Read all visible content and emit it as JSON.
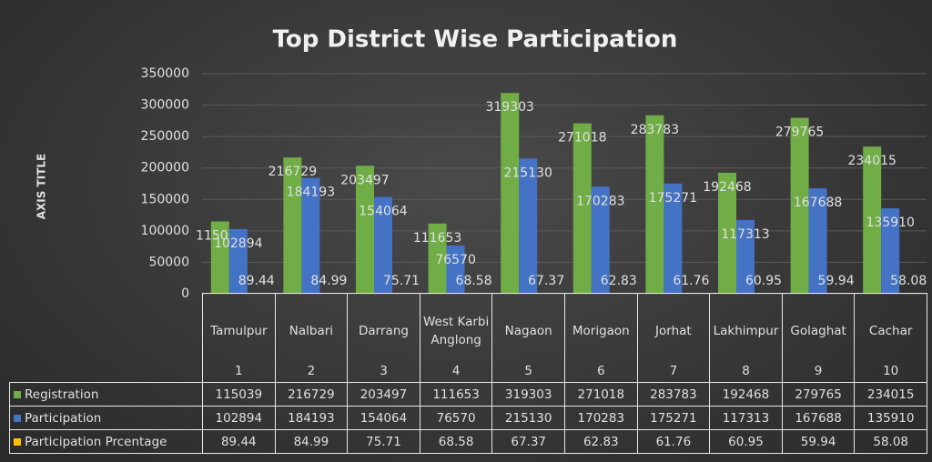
{
  "chart_data": {
    "type": "bar",
    "title": "Top District Wise Participation",
    "y_axis_title": "AXIS TITLE",
    "categories": [
      "Tamulpur",
      "Nalbari",
      "Darrang",
      "West Karbi Anglong",
      "Nagaon",
      "Morigaon",
      "Jorhat",
      "Lakhimpur",
      "Golaghat",
      "Cachar"
    ],
    "category_numbers": [
      1,
      2,
      3,
      4,
      5,
      6,
      7,
      8,
      9,
      10
    ],
    "series": [
      {
        "name": "Registration",
        "color": "#70ad47",
        "values": [
          115039,
          216729,
          203497,
          111653,
          319303,
          271018,
          283783,
          192468,
          279765,
          234015
        ]
      },
      {
        "name": "Participation",
        "color": "#4472c4",
        "values": [
          102894,
          184193,
          154064,
          76570,
          215130,
          170283,
          175271,
          117313,
          167688,
          135910
        ]
      },
      {
        "name": "Participation Prcentage",
        "color": "#ffc000",
        "values": [
          89.44,
          84.99,
          75.71,
          68.58,
          67.37,
          62.83,
          61.76,
          60.95,
          59.94,
          58.08
        ]
      }
    ],
    "ylim": [
      0,
      350000
    ],
    "yticks": [
      0,
      50000,
      100000,
      150000,
      200000,
      250000,
      300000,
      350000
    ],
    "grid": true
  }
}
